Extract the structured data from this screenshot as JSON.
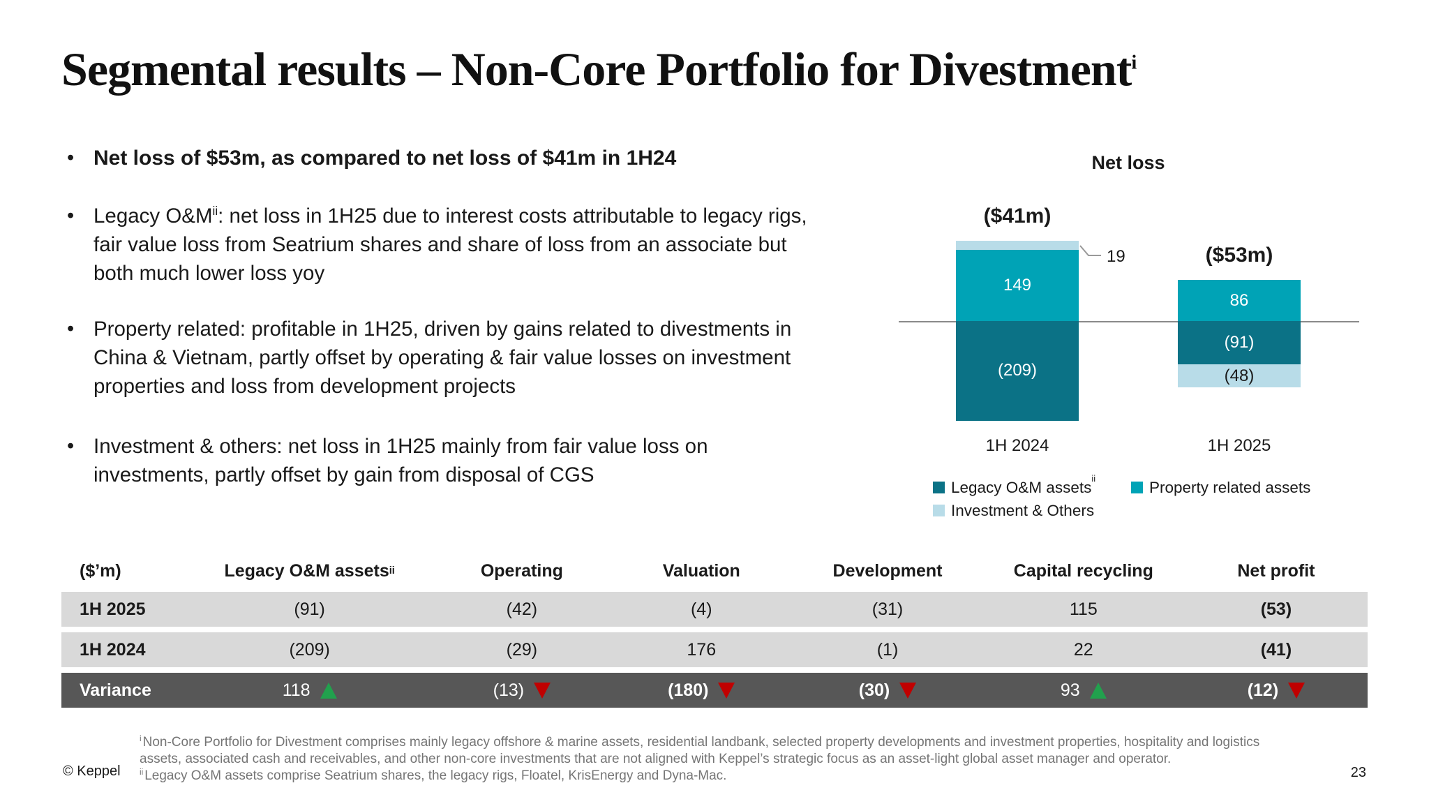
{
  "slide": {
    "title": "Segmental results – Non-Core Portfolio for Divestment",
    "title_sup": "i",
    "copyright": "© Keppel",
    "page_number": "23"
  },
  "bullets": {
    "b1": "Net loss of $53m, as compared to net loss of $41m in 1H24",
    "b2_pre": "Legacy O&M",
    "b2_sup": "ii",
    "b2_post": ": net loss in 1H25 due to interest costs attributable to legacy rigs, fair value loss from Seatrium shares and share of loss from an associate but both much lower loss yoy",
    "b3": "Property related: profitable in 1H25, driven by gains related to divestments in China & Vietnam, partly offset by operating & fair value losses on investment properties and loss from development projects",
    "b4": "Investment & others: net loss in 1H25 mainly from fair value loss on investments, partly offset by gain from disposal of CGS"
  },
  "chart_data": {
    "type": "bar",
    "stacked": true,
    "title": "Net loss",
    "unit": "$m",
    "categories": [
      "1H 2024",
      "1H 2025"
    ],
    "series": [
      {
        "name": "Legacy O&M assets",
        "sup": "ii",
        "color": "#0b7286",
        "label_color": "#ffffff",
        "values": [
          -209,
          -91
        ],
        "labels": [
          "(209)",
          "(91)"
        ]
      },
      {
        "name": "Property related assets",
        "sup": "",
        "color": "#00a3b6",
        "label_color": "#ffffff",
        "values": [
          149,
          86
        ],
        "labels": [
          "149",
          "86"
        ]
      },
      {
        "name": "Investment & Others",
        "sup": "",
        "color": "#b8dce8",
        "label_color": "#1a1a1a",
        "values": [
          19,
          -48
        ],
        "labels": [
          "19",
          "(48)"
        ]
      }
    ],
    "totals": [
      -41,
      -53
    ],
    "total_labels": [
      "($41m)",
      "($53m)"
    ],
    "ylim": [
      -260,
      180
    ],
    "grid": false,
    "legend_position": "bottom"
  },
  "table": {
    "headers": [
      "($’m)",
      "Legacy O&M assets",
      "Operating",
      "Valuation",
      "Development",
      "Capital recycling",
      "Net profit"
    ],
    "header_sup": "ii",
    "rows": [
      {
        "label": "1H 2025",
        "values": [
          "(91)",
          "(42)",
          "(4)",
          "(31)",
          "115",
          "(53)"
        ]
      },
      {
        "label": "1H 2024",
        "values": [
          "(209)",
          "(29)",
          "176",
          "(1)",
          "22",
          "(41)"
        ]
      },
      {
        "label": "Variance",
        "values": [
          "118",
          "(13)",
          "(180)",
          "(30)",
          "93",
          "(12)"
        ],
        "arrows": [
          "up",
          "down",
          "down",
          "down",
          "up",
          "down"
        ]
      }
    ]
  },
  "footnotes": [
    {
      "sup": "i",
      "text": "Non-Core Portfolio for Divestment comprises mainly legacy offshore & marine assets, residential landbank, selected property developments and investment properties, hospitality and logistics assets, associated cash and receivables, and other non-core investments that are not aligned with Keppel’s strategic focus as an asset-light global asset manager and operator."
    },
    {
      "sup": "ii",
      "text": "Legacy O&M assets comprise Seatrium shares, the legacy rigs, Floatel, KrisEnergy and Dyna-Mac."
    }
  ],
  "colors": {
    "teal": "#00a3b6",
    "dark_teal": "#0b7286",
    "light_blue": "#b8dce8",
    "row_gray": "#d9d9d9",
    "variance_bg": "#575757",
    "arrow_up": "#21a14d",
    "arrow_down": "#c00000",
    "axis_gray": "#8a8a8a",
    "footnote_gray": "#757575"
  }
}
